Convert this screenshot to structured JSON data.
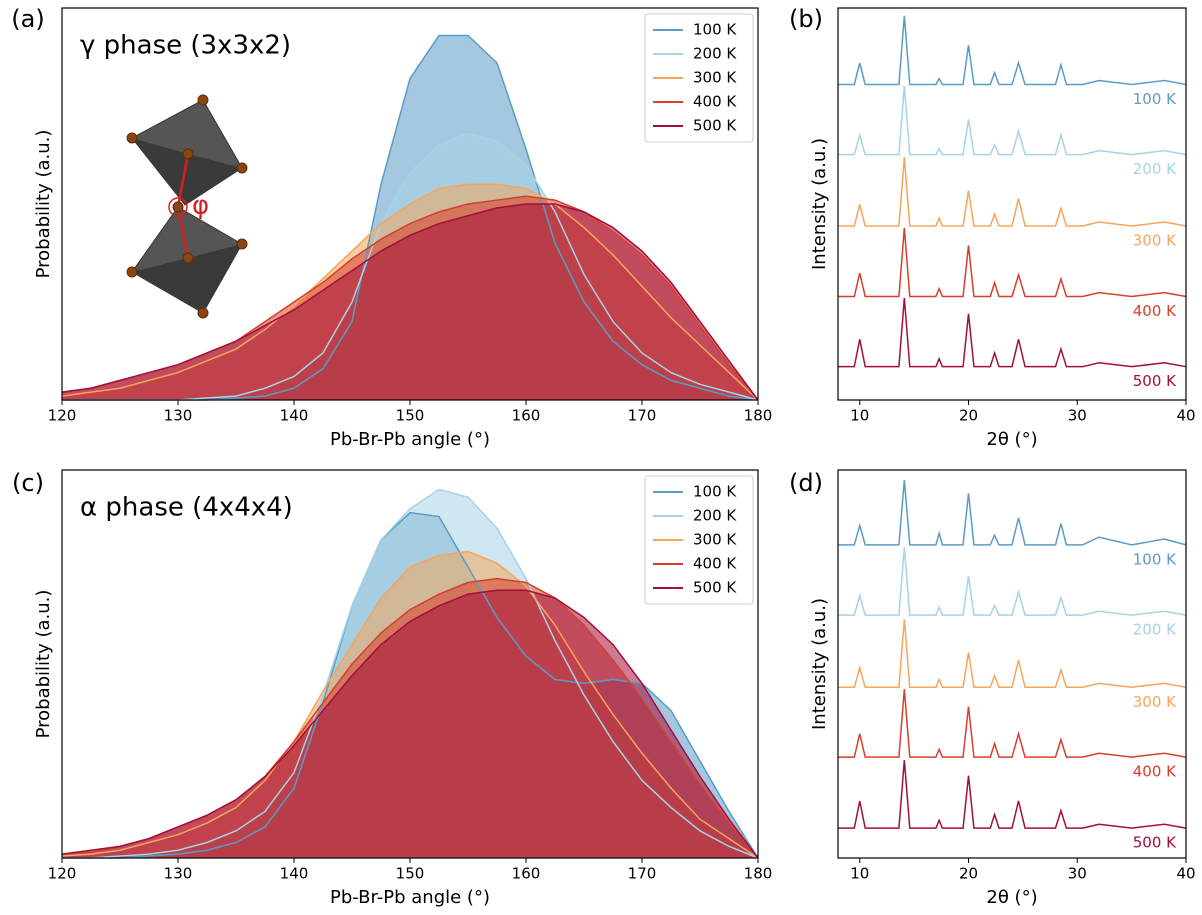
{
  "chart_data": [
    {
      "type": "area",
      "panel_label": "(a)",
      "title": "γ phase (3x3x2)",
      "annotation": "φ",
      "x_label": "Pb-Br-Pb angle (°)",
      "y_label": "Probability (a.u.)",
      "xlim": [
        120,
        180
      ],
      "xticks": [
        120,
        130,
        140,
        150,
        160,
        170,
        180
      ],
      "ylim": [
        0,
        1
      ],
      "legend": "upper right",
      "x": [
        120,
        122.5,
        125,
        127.5,
        130,
        132.5,
        135,
        137.5,
        140,
        142.5,
        145,
        147.5,
        150,
        152.5,
        155,
        157.5,
        160,
        162.5,
        165,
        167.5,
        170,
        172.5,
        175,
        177.5,
        180
      ],
      "series": [
        {
          "name": "100 K",
          "color": "#5b9bc8",
          "values": [
            0,
            0,
            0,
            0,
            0,
            0,
            0.005,
            0.01,
            0.03,
            0.08,
            0.2,
            0.55,
            0.82,
            0.93,
            0.93,
            0.86,
            0.64,
            0.4,
            0.25,
            0.15,
            0.09,
            0.05,
            0.03,
            0.01,
            0
          ]
        },
        {
          "name": "200 K",
          "color": "#a6d3e5",
          "values": [
            0,
            0,
            0,
            0,
            0,
            0.005,
            0.01,
            0.03,
            0.06,
            0.12,
            0.25,
            0.45,
            0.58,
            0.65,
            0.68,
            0.66,
            0.6,
            0.48,
            0.32,
            0.2,
            0.12,
            0.07,
            0.04,
            0.02,
            0
          ]
        },
        {
          "name": "300 K",
          "color": "#f5a55c",
          "values": [
            0.01,
            0.02,
            0.03,
            0.05,
            0.07,
            0.1,
            0.13,
            0.18,
            0.24,
            0.31,
            0.38,
            0.45,
            0.5,
            0.54,
            0.55,
            0.55,
            0.54,
            0.5,
            0.44,
            0.37,
            0.29,
            0.21,
            0.14,
            0.07,
            0
          ]
        },
        {
          "name": "400 K",
          "color": "#d63f2b",
          "values": [
            0.02,
            0.03,
            0.05,
            0.07,
            0.09,
            0.12,
            0.15,
            0.2,
            0.25,
            0.3,
            0.36,
            0.41,
            0.45,
            0.48,
            0.5,
            0.51,
            0.52,
            0.51,
            0.48,
            0.43,
            0.37,
            0.29,
            0.19,
            0.09,
            0
          ]
        },
        {
          "name": "500 K",
          "color": "#a30f38",
          "values": [
            0.02,
            0.03,
            0.05,
            0.07,
            0.09,
            0.12,
            0.15,
            0.19,
            0.23,
            0.28,
            0.33,
            0.38,
            0.42,
            0.45,
            0.47,
            0.49,
            0.5,
            0.5,
            0.48,
            0.44,
            0.38,
            0.3,
            0.2,
            0.1,
            0
          ]
        }
      ]
    },
    {
      "type": "line",
      "panel_label": "(b)",
      "x_label": "2θ (°)",
      "y_label": "Intensity (a.u.)",
      "xlim": [
        8,
        40
      ],
      "xticks": [
        10,
        20,
        30,
        40
      ],
      "ylim": [
        0,
        1
      ],
      "x": [
        8,
        9.5,
        10,
        10.5,
        13.6,
        14.1,
        14.6,
        16,
        17,
        17.3,
        17.6,
        19.5,
        20,
        20.5,
        22,
        22.4,
        22.8,
        24,
        24.6,
        25.2,
        28,
        28.5,
        29,
        30.5,
        32,
        35,
        38,
        40
      ],
      "series": [
        {
          "name": "100 K",
          "color": "#5b9bc8",
          "values": [
            0.805,
            0.805,
            0.86,
            0.805,
            0.805,
            0.98,
            0.805,
            0.805,
            0.805,
            0.82,
            0.805,
            0.805,
            0.905,
            0.805,
            0.805,
            0.835,
            0.805,
            0.805,
            0.86,
            0.805,
            0.805,
            0.855,
            0.805,
            0.805,
            0.815,
            0.805,
            0.815,
            0.805
          ]
        },
        {
          "name": "200 K",
          "color": "#a6d3e5",
          "values": [
            0.626,
            0.626,
            0.676,
            0.626,
            0.626,
            0.801,
            0.626,
            0.626,
            0.626,
            0.641,
            0.626,
            0.626,
            0.716,
            0.626,
            0.626,
            0.651,
            0.626,
            0.626,
            0.686,
            0.626,
            0.626,
            0.676,
            0.626,
            0.626,
            0.636,
            0.626,
            0.636,
            0.626
          ]
        },
        {
          "name": "300 K",
          "color": "#f5a55c",
          "values": [
            0.444,
            0.444,
            0.499,
            0.444,
            0.444,
            0.619,
            0.444,
            0.444,
            0.444,
            0.464,
            0.444,
            0.444,
            0.534,
            0.444,
            0.444,
            0.474,
            0.444,
            0.444,
            0.514,
            0.444,
            0.444,
            0.489,
            0.444,
            0.444,
            0.454,
            0.444,
            0.454,
            0.444
          ]
        },
        {
          "name": "400 K",
          "color": "#d63f2b",
          "values": [
            0.264,
            0.264,
            0.324,
            0.264,
            0.264,
            0.439,
            0.264,
            0.264,
            0.264,
            0.284,
            0.264,
            0.264,
            0.394,
            0.264,
            0.264,
            0.299,
            0.264,
            0.264,
            0.319,
            0.264,
            0.264,
            0.309,
            0.264,
            0.264,
            0.274,
            0.264,
            0.274,
            0.264
          ]
        },
        {
          "name": "500 K",
          "color": "#a30f38",
          "values": [
            0.085,
            0.085,
            0.155,
            0.085,
            0.085,
            0.26,
            0.085,
            0.085,
            0.085,
            0.105,
            0.085,
            0.085,
            0.22,
            0.085,
            0.085,
            0.12,
            0.085,
            0.085,
            0.155,
            0.085,
            0.085,
            0.13,
            0.085,
            0.085,
            0.095,
            0.085,
            0.095,
            0.085
          ]
        }
      ]
    },
    {
      "type": "area",
      "panel_label": "(c)",
      "title": "α phase (4x4x4)",
      "x_label": "Pb-Br-Pb angle (°)",
      "y_label": "Probability (a.u.)",
      "xlim": [
        120,
        180
      ],
      "xticks": [
        120,
        130,
        140,
        150,
        160,
        170,
        180
      ],
      "ylim": [
        0,
        1
      ],
      "legend": "upper right",
      "x": [
        120,
        122.5,
        125,
        127.5,
        130,
        132.5,
        135,
        137.5,
        140,
        142.5,
        145,
        147.5,
        150,
        152.5,
        155,
        157.5,
        160,
        162.5,
        165,
        167.5,
        170,
        172.5,
        175,
        177.5,
        180
      ],
      "series": [
        {
          "name": "100 K",
          "color": "#5b9bc8",
          "values": [
            0,
            0,
            0,
            0.005,
            0.01,
            0.02,
            0.04,
            0.08,
            0.18,
            0.4,
            0.65,
            0.82,
            0.89,
            0.88,
            0.75,
            0.62,
            0.52,
            0.46,
            0.45,
            0.46,
            0.45,
            0.38,
            0.25,
            0.12,
            0
          ]
        },
        {
          "name": "200 K",
          "color": "#a6d3e5",
          "values": [
            0,
            0,
            0.005,
            0.01,
            0.02,
            0.04,
            0.07,
            0.12,
            0.22,
            0.42,
            0.65,
            0.82,
            0.9,
            0.95,
            0.93,
            0.85,
            0.72,
            0.56,
            0.42,
            0.3,
            0.2,
            0.13,
            0.07,
            0.03,
            0
          ]
        },
        {
          "name": "300 K",
          "color": "#f5a55c",
          "values": [
            0.005,
            0.01,
            0.02,
            0.04,
            0.06,
            0.09,
            0.13,
            0.2,
            0.3,
            0.43,
            0.55,
            0.67,
            0.75,
            0.78,
            0.79,
            0.76,
            0.7,
            0.6,
            0.48,
            0.37,
            0.27,
            0.18,
            0.1,
            0.05,
            0
          ]
        },
        {
          "name": "400 K",
          "color": "#d63f2b",
          "values": [
            0.01,
            0.015,
            0.03,
            0.05,
            0.08,
            0.11,
            0.15,
            0.21,
            0.3,
            0.4,
            0.5,
            0.58,
            0.64,
            0.68,
            0.71,
            0.72,
            0.71,
            0.67,
            0.6,
            0.51,
            0.41,
            0.3,
            0.19,
            0.09,
            0
          ]
        },
        {
          "name": "500 K",
          "color": "#a30f38",
          "values": [
            0.01,
            0.02,
            0.03,
            0.05,
            0.08,
            0.11,
            0.15,
            0.21,
            0.29,
            0.38,
            0.47,
            0.55,
            0.61,
            0.65,
            0.68,
            0.69,
            0.69,
            0.67,
            0.62,
            0.55,
            0.45,
            0.33,
            0.21,
            0.1,
            0
          ]
        }
      ]
    },
    {
      "type": "line",
      "panel_label": "(d)",
      "x_label": "2θ (°)",
      "y_label": "Intensity (a.u.)",
      "xlim": [
        8,
        40
      ],
      "xticks": [
        10,
        20,
        30,
        40
      ],
      "ylim": [
        0,
        1
      ],
      "x": [
        8,
        9.5,
        10,
        10.5,
        13.6,
        14.1,
        14.6,
        16,
        17,
        17.3,
        17.6,
        19.5,
        20,
        20.5,
        22,
        22.4,
        22.8,
        24,
        24.6,
        25.2,
        28,
        28.5,
        29,
        30.5,
        32,
        35,
        38,
        40
      ],
      "series": [
        {
          "name": "100 K",
          "color": "#5b9bc8",
          "values": [
            0.807,
            0.807,
            0.857,
            0.807,
            0.807,
            0.974,
            0.807,
            0.807,
            0.807,
            0.837,
            0.807,
            0.807,
            0.94,
            0.807,
            0.807,
            0.832,
            0.807,
            0.807,
            0.877,
            0.807,
            0.807,
            0.862,
            0.807,
            0.807,
            0.827,
            0.807,
            0.822,
            0.807
          ]
        },
        {
          "name": "200 K",
          "color": "#a6d3e5",
          "values": [
            0.626,
            0.626,
            0.676,
            0.626,
            0.626,
            0.801,
            0.626,
            0.626,
            0.626,
            0.646,
            0.626,
            0.626,
            0.726,
            0.626,
            0.626,
            0.651,
            0.626,
            0.626,
            0.686,
            0.626,
            0.626,
            0.671,
            0.626,
            0.626,
            0.636,
            0.626,
            0.636,
            0.626
          ]
        },
        {
          "name": "300 K",
          "color": "#f5a55c",
          "values": [
            0.44,
            0.44,
            0.49,
            0.44,
            0.44,
            0.615,
            0.44,
            0.44,
            0.44,
            0.46,
            0.44,
            0.44,
            0.53,
            0.44,
            0.44,
            0.47,
            0.44,
            0.44,
            0.51,
            0.44,
            0.44,
            0.485,
            0.44,
            0.44,
            0.45,
            0.44,
            0.45,
            0.44
          ]
        },
        {
          "name": "400 K",
          "color": "#d63f2b",
          "values": [
            0.26,
            0.26,
            0.32,
            0.26,
            0.26,
            0.435,
            0.26,
            0.26,
            0.26,
            0.28,
            0.26,
            0.26,
            0.39,
            0.26,
            0.26,
            0.295,
            0.26,
            0.26,
            0.32,
            0.26,
            0.26,
            0.305,
            0.26,
            0.26,
            0.27,
            0.26,
            0.27,
            0.26
          ]
        },
        {
          "name": "500 K",
          "color": "#a30f38",
          "values": [
            0.077,
            0.077,
            0.147,
            0.077,
            0.077,
            0.252,
            0.077,
            0.077,
            0.077,
            0.097,
            0.077,
            0.077,
            0.212,
            0.077,
            0.077,
            0.112,
            0.077,
            0.077,
            0.147,
            0.077,
            0.077,
            0.122,
            0.077,
            0.077,
            0.087,
            0.077,
            0.087,
            0.077
          ]
        }
      ]
    }
  ]
}
